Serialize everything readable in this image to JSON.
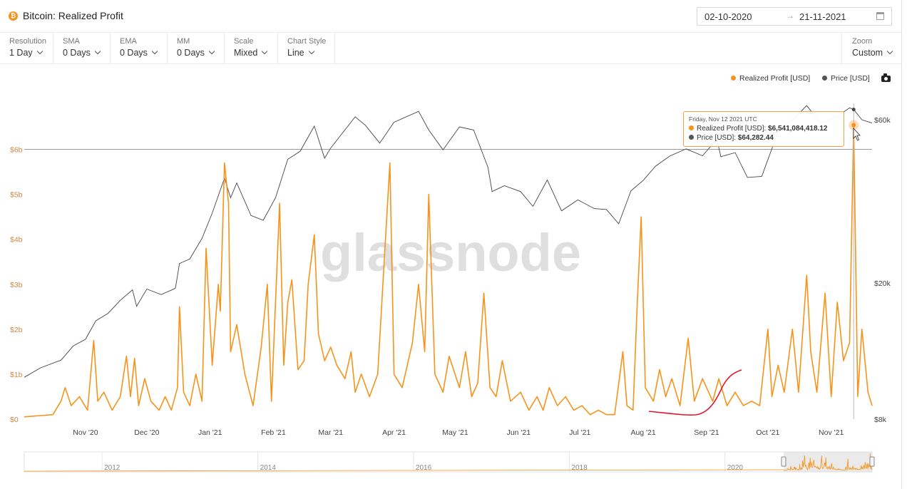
{
  "header": {
    "title": "Bitcoin: Realized Profit",
    "asset_badge": "₿",
    "date_start": "02-10-2020",
    "date_arrow": "→",
    "date_end": "21-11-2021"
  },
  "toolbar": {
    "items": [
      {
        "label": "Resolution",
        "value": "1 Day"
      },
      {
        "label": "SMA",
        "value": "0 Days"
      },
      {
        "label": "EMA",
        "value": "0 Days"
      },
      {
        "label": "MM",
        "value": "0 Days"
      },
      {
        "label": "Scale",
        "value": "Mixed"
      },
      {
        "label": "Chart Style",
        "value": "Line"
      }
    ],
    "zoom": {
      "label": "Zoom",
      "value": "Custom"
    }
  },
  "legend": {
    "profit": "Realized Profit [USD]",
    "price": "Price [USD]"
  },
  "watermark": "glassnode",
  "tooltip": {
    "date": "Friday, Nov 12 2021 UTC",
    "profit_label": "Realized Profit [USD]:",
    "profit_value": "$6,541,084,418.12",
    "price_label": "Price [USD]:",
    "price_value": "$64,282.44"
  },
  "colors": {
    "profit": "#f7931a",
    "price": "#444444",
    "annotation": "#e0182d",
    "axis_left": "#c98a4a"
  },
  "chart_data": {
    "type": "line",
    "x_start": "2020-10-02",
    "x_end": "2021-11-21",
    "x_ticks": [
      {
        "label": "Nov '20",
        "date": "2020-11-01"
      },
      {
        "label": "Dec '20",
        "date": "2020-12-01"
      },
      {
        "label": "Jan '21",
        "date": "2021-01-01"
      },
      {
        "label": "Feb '21",
        "date": "2021-02-01"
      },
      {
        "label": "Mar '21",
        "date": "2021-03-01"
      },
      {
        "label": "Apr '21",
        "date": "2021-04-01"
      },
      {
        "label": "May '21",
        "date": "2021-05-01"
      },
      {
        "label": "Jun '21",
        "date": "2021-06-01"
      },
      {
        "label": "Jul '21",
        "date": "2021-07-01"
      },
      {
        "label": "Aug '21",
        "date": "2021-08-01"
      },
      {
        "label": "Sep '21",
        "date": "2021-09-01"
      },
      {
        "label": "Oct '21",
        "date": "2021-10-01"
      },
      {
        "label": "Nov '21",
        "date": "2021-11-01"
      }
    ],
    "y_left": {
      "unit": "USD",
      "range": [
        0,
        6500000000
      ],
      "ticks": [
        {
          "label": "$0",
          "value": 0
        },
        {
          "label": "$1b",
          "value": 1000000000
        },
        {
          "label": "$2b",
          "value": 2000000000
        },
        {
          "label": "$3b",
          "value": 3000000000
        },
        {
          "label": "$4b",
          "value": 4000000000
        },
        {
          "label": "$5b",
          "value": 5000000000
        },
        {
          "label": "$6b",
          "value": 6000000000
        }
      ]
    },
    "y_right": {
      "unit": "USD",
      "scale": "log",
      "range": [
        8000,
        70000
      ],
      "ticks": [
        {
          "label": "$8k",
          "value": 8000
        },
        {
          "label": "$20k",
          "value": 20000
        },
        {
          "label": "$60k",
          "value": 60000
        }
      ]
    },
    "series": [
      {
        "name": "Realized Profit [USD]",
        "axis": "left",
        "points": [
          [
            "2020-10-02",
            50000000.0
          ],
          [
            "2020-10-10",
            80000000.0
          ],
          [
            "2020-10-16",
            100000000.0
          ],
          [
            "2020-10-20",
            400000000.0
          ],
          [
            "2020-10-22",
            700000000.0
          ],
          [
            "2020-10-25",
            300000000.0
          ],
          [
            "2020-10-29",
            500000000.0
          ],
          [
            "2020-11-02",
            200000000.0
          ],
          [
            "2020-11-05",
            1750000000.0
          ],
          [
            "2020-11-07",
            400000000.0
          ],
          [
            "2020-11-10",
            600000000.0
          ],
          [
            "2020-11-14",
            200000000.0
          ],
          [
            "2020-11-18",
            500000000.0
          ],
          [
            "2020-11-21",
            1400000000.0
          ],
          [
            "2020-11-23",
            500000000.0
          ],
          [
            "2020-11-25",
            1350000000.0
          ],
          [
            "2020-11-27",
            300000000.0
          ],
          [
            "2020-11-30",
            900000000.0
          ],
          [
            "2020-12-03",
            400000000.0
          ],
          [
            "2020-12-07",
            200000000.0
          ],
          [
            "2020-12-10",
            500000000.0
          ],
          [
            "2020-12-13",
            200000000.0
          ],
          [
            "2020-12-16",
            700000000.0
          ],
          [
            "2020-12-17",
            2500000000.0
          ],
          [
            "2020-12-19",
            600000000.0
          ],
          [
            "2020-12-22",
            300000000.0
          ],
          [
            "2020-12-25",
            1000000000.0
          ],
          [
            "2020-12-28",
            400000000.0
          ],
          [
            "2020-12-30",
            3800000000.0
          ],
          [
            "2021-01-02",
            1200000000.0
          ],
          [
            "2021-01-05",
            3000000000.0
          ],
          [
            "2021-01-06",
            2400000000.0
          ],
          [
            "2021-01-08",
            5700000000.0
          ],
          [
            "2021-01-10",
            4800000000.0
          ],
          [
            "2021-01-11",
            1500000000.0
          ],
          [
            "2021-01-14",
            2100000000.0
          ],
          [
            "2021-01-18",
            1000000000.0
          ],
          [
            "2021-01-22",
            300000000.0
          ],
          [
            "2021-01-26",
            1600000000.0
          ],
          [
            "2021-01-29",
            3000000000.0
          ],
          [
            "2021-01-31",
            400000000.0
          ],
          [
            "2021-02-04",
            4800000000.0
          ],
          [
            "2021-02-06",
            1200000000.0
          ],
          [
            "2021-02-08",
            2600000000.0
          ],
          [
            "2021-02-10",
            3100000000.0
          ],
          [
            "2021-02-13",
            1100000000.0
          ],
          [
            "2021-02-16",
            1300000000.0
          ],
          [
            "2021-02-18",
            3000000000.0
          ],
          [
            "2021-02-21",
            4100000000.0
          ],
          [
            "2021-02-23",
            1900000000.0
          ],
          [
            "2021-02-26",
            1300000000.0
          ],
          [
            "2021-03-01",
            1600000000.0
          ],
          [
            "2021-03-04",
            1200000000.0
          ],
          [
            "2021-03-08",
            900000000.0
          ],
          [
            "2021-03-11",
            1500000000.0
          ],
          [
            "2021-03-13",
            600000000.0
          ],
          [
            "2021-03-16",
            1000000000.0
          ],
          [
            "2021-03-20",
            500000000.0
          ],
          [
            "2021-03-24",
            1000000000.0
          ],
          [
            "2021-03-30",
            5700000000.0
          ],
          [
            "2021-04-01",
            1000000000.0
          ],
          [
            "2021-04-05",
            700000000.0
          ],
          [
            "2021-04-10",
            1700000000.0
          ],
          [
            "2021-04-13",
            3000000000.0
          ],
          [
            "2021-04-16",
            1500000000.0
          ],
          [
            "2021-04-18",
            5000000000.0
          ],
          [
            "2021-04-21",
            1000000000.0
          ],
          [
            "2021-04-25",
            600000000.0
          ],
          [
            "2021-04-28",
            1400000000.0
          ],
          [
            "2021-05-03",
            700000000.0
          ],
          [
            "2021-05-06",
            1500000000.0
          ],
          [
            "2021-05-09",
            500000000.0
          ],
          [
            "2021-05-12",
            800000000.0
          ],
          [
            "2021-05-15",
            2800000000.0
          ],
          [
            "2021-05-18",
            700000000.0
          ],
          [
            "2021-05-21",
            500000000.0
          ],
          [
            "2021-05-24",
            1300000000.0
          ],
          [
            "2021-05-28",
            400000000.0
          ],
          [
            "2021-06-02",
            600000000.0
          ],
          [
            "2021-06-06",
            200000000.0
          ],
          [
            "2021-06-10",
            500000000.0
          ],
          [
            "2021-06-13",
            200000000.0
          ],
          [
            "2021-06-16",
            700000000.0
          ],
          [
            "2021-06-20",
            300000000.0
          ],
          [
            "2021-06-24",
            500000000.0
          ],
          [
            "2021-06-28",
            200000000.0
          ],
          [
            "2021-07-02",
            300000000.0
          ],
          [
            "2021-07-06",
            100000000.0
          ],
          [
            "2021-07-10",
            200000000.0
          ],
          [
            "2021-07-14",
            100000000.0
          ],
          [
            "2021-07-18",
            100000000.0
          ],
          [
            "2021-07-22",
            1500000000.0
          ],
          [
            "2021-07-24",
            300000000.0
          ],
          [
            "2021-07-27",
            200000000.0
          ],
          [
            "2021-07-29",
            2500000000.0
          ],
          [
            "2021-07-31",
            4500000000.0
          ],
          [
            "2021-08-02",
            700000000.0
          ],
          [
            "2021-08-06",
            400000000.0
          ],
          [
            "2021-08-09",
            1100000000.0
          ],
          [
            "2021-08-12",
            500000000.0
          ],
          [
            "2021-08-15",
            900000000.0
          ],
          [
            "2021-08-19",
            300000000.0
          ],
          [
            "2021-08-23",
            1800000000.0
          ],
          [
            "2021-08-26",
            400000000.0
          ],
          [
            "2021-08-30",
            900000000.0
          ],
          [
            "2021-09-04",
            400000000.0
          ],
          [
            "2021-09-07",
            900000000.0
          ],
          [
            "2021-09-11",
            300000000.0
          ],
          [
            "2021-09-15",
            600000000.0
          ],
          [
            "2021-09-19",
            300000000.0
          ],
          [
            "2021-09-23",
            400000000.0
          ],
          [
            "2021-09-27",
            300000000.0
          ],
          [
            "2021-10-01",
            2000000000.0
          ],
          [
            "2021-10-03",
            500000000.0
          ],
          [
            "2021-10-06",
            1200000000.0
          ],
          [
            "2021-10-09",
            600000000.0
          ],
          [
            "2021-10-13",
            2000000000.0
          ],
          [
            "2021-10-16",
            600000000.0
          ],
          [
            "2021-10-20",
            3200000000.0
          ],
          [
            "2021-10-22",
            1500000000.0
          ],
          [
            "2021-10-25",
            600000000.0
          ],
          [
            "2021-10-29",
            2800000000.0
          ],
          [
            "2021-11-01",
            500000000.0
          ],
          [
            "2021-11-04",
            2600000000.0
          ],
          [
            "2021-11-07",
            1300000000.0
          ],
          [
            "2021-11-10",
            1700000000.0
          ],
          [
            "2021-11-12",
            6540000000.0
          ],
          [
            "2021-11-14",
            500000000.0
          ],
          [
            "2021-11-16",
            2000000000.0
          ],
          [
            "2021-11-19",
            600000000.0
          ],
          [
            "2021-11-21",
            300000000.0
          ]
        ]
      },
      {
        "name": "Price [USD]",
        "axis": "right",
        "points": [
          [
            "2020-10-02",
            10600
          ],
          [
            "2020-10-10",
            11300
          ],
          [
            "2020-10-20",
            11900
          ],
          [
            "2020-10-26",
            13100
          ],
          [
            "2020-11-01",
            13700
          ],
          [
            "2020-11-06",
            15500
          ],
          [
            "2020-11-12",
            16300
          ],
          [
            "2020-11-18",
            17800
          ],
          [
            "2020-11-24",
            19100
          ],
          [
            "2020-11-26",
            17100
          ],
          [
            "2020-12-01",
            19200
          ],
          [
            "2020-12-08",
            18500
          ],
          [
            "2020-12-15",
            19300
          ],
          [
            "2020-12-17",
            22800
          ],
          [
            "2020-12-22",
            23500
          ],
          [
            "2020-12-28",
            27000
          ],
          [
            "2021-01-02",
            32000
          ],
          [
            "2021-01-08",
            40500
          ],
          [
            "2021-01-11",
            35500
          ],
          [
            "2021-01-14",
            39200
          ],
          [
            "2021-01-21",
            31500
          ],
          [
            "2021-01-27",
            30500
          ],
          [
            "2021-02-02",
            35500
          ],
          [
            "2021-02-08",
            46000
          ],
          [
            "2021-02-14",
            48500
          ],
          [
            "2021-02-21",
            57500
          ],
          [
            "2021-02-26",
            46300
          ],
          [
            "2021-03-01",
            49600
          ],
          [
            "2021-03-13",
            61200
          ],
          [
            "2021-03-18",
            57800
          ],
          [
            "2021-03-25",
            51300
          ],
          [
            "2021-04-01",
            59000
          ],
          [
            "2021-04-13",
            63500
          ],
          [
            "2021-04-18",
            56000
          ],
          [
            "2021-04-25",
            49000
          ],
          [
            "2021-05-03",
            57200
          ],
          [
            "2021-05-10",
            56000
          ],
          [
            "2021-05-17",
            43500
          ],
          [
            "2021-05-19",
            37000
          ],
          [
            "2021-05-25",
            38500
          ],
          [
            "2021-06-02",
            37000
          ],
          [
            "2021-06-08",
            33500
          ],
          [
            "2021-06-15",
            40000
          ],
          [
            "2021-06-22",
            32500
          ],
          [
            "2021-06-30",
            35000
          ],
          [
            "2021-07-08",
            33000
          ],
          [
            "2021-07-14",
            32800
          ],
          [
            "2021-07-20",
            29800
          ],
          [
            "2021-07-26",
            37200
          ],
          [
            "2021-08-01",
            39900
          ],
          [
            "2021-08-07",
            43900
          ],
          [
            "2021-08-14",
            47000
          ],
          [
            "2021-08-22",
            49300
          ],
          [
            "2021-08-30",
            47100
          ],
          [
            "2021-09-06",
            52600
          ],
          [
            "2021-09-08",
            46800
          ],
          [
            "2021-09-15",
            48100
          ],
          [
            "2021-09-21",
            40700
          ],
          [
            "2021-09-28",
            41000
          ],
          [
            "2021-10-06",
            55300
          ],
          [
            "2021-10-15",
            61500
          ],
          [
            "2021-10-20",
            66000
          ],
          [
            "2021-10-27",
            58500
          ],
          [
            "2021-11-04",
            61400
          ],
          [
            "2021-11-10",
            65000
          ],
          [
            "2021-11-12",
            64282
          ],
          [
            "2021-11-16",
            60000
          ],
          [
            "2021-11-21",
            58700
          ]
        ]
      }
    ],
    "grid": false,
    "legend_position": "top-right",
    "hover_date": "2021-11-12",
    "navigator": {
      "x_start": "2011-01-01",
      "x_end": "2021-11-21",
      "labels": [
        {
          "label": "2012",
          "date": "2012-01-01"
        },
        {
          "label": "2014",
          "date": "2014-01-01"
        },
        {
          "label": "2016",
          "date": "2016-01-01"
        },
        {
          "label": "2018",
          "date": "2018-01-01"
        },
        {
          "label": "2020",
          "date": "2020-01-01"
        }
      ]
    }
  }
}
